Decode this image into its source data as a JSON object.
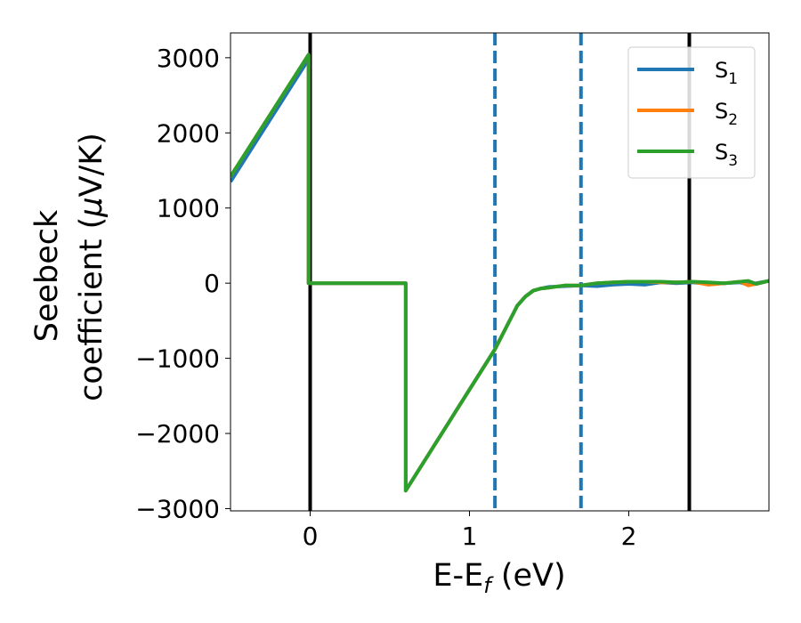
{
  "chart_data": {
    "type": "line",
    "xlabel_main": "E-E",
    "xlabel_sub": "f",
    "xlabel_unit": " (eV)",
    "ylabel_line1": "Seebeck",
    "ylabel_line2_text": "coefficient  (",
    "ylabel_line2_mu": "μ",
    "ylabel_line2_unit": "V/K)",
    "xlim": [
      -0.5,
      2.88
    ],
    "ylim": [
      -3030,
      3330
    ],
    "xticks": [
      0,
      1,
      2
    ],
    "xtick_labels": [
      "0",
      "1",
      "2"
    ],
    "yticks": [
      -3000,
      -2000,
      -1000,
      0,
      1000,
      2000,
      3000
    ],
    "ytick_labels": [
      "−3000",
      "−2000",
      "−1000",
      "0",
      "1000",
      "2000",
      "3000"
    ],
    "vlines": [
      {
        "x": 0.0,
        "style": "solid",
        "color": "#000000"
      },
      {
        "x": 1.16,
        "style": "dashed",
        "color": "#1f77b4"
      },
      {
        "x": 1.7,
        "style": "dashed",
        "color": "#1f77b4"
      },
      {
        "x": 2.38,
        "style": "solid",
        "color": "#000000"
      }
    ],
    "legend_position": "top-right",
    "series": [
      {
        "name": "S",
        "sub": "1",
        "color": "#1f77b4",
        "x": [
          -0.5,
          -0.01,
          -0.01,
          0.6,
          0.6,
          1.16,
          1.3,
          1.35,
          1.4,
          1.45,
          1.5,
          1.6,
          1.7,
          1.8,
          1.9,
          2.0,
          2.1,
          2.2,
          2.3,
          2.4,
          2.5,
          2.6,
          2.7,
          2.75,
          2.8,
          2.88
        ],
        "y": [
          1350,
          2980,
          0,
          0,
          -2760,
          -880,
          -300,
          -180,
          -100,
          -70,
          -50,
          -40,
          -30,
          -40,
          -20,
          -10,
          -20,
          10,
          0,
          10,
          -10,
          0,
          10,
          -20,
          0,
          30
        ]
      },
      {
        "name": "S",
        "sub": "2",
        "color": "#ff7f0e",
        "x": [
          -0.5,
          -0.01,
          -0.01,
          0.6,
          0.6,
          1.16,
          1.3,
          1.35,
          1.4,
          1.45,
          1.5,
          1.6,
          1.7,
          1.8,
          1.9,
          2.0,
          2.1,
          2.2,
          2.3,
          2.4,
          2.5,
          2.6,
          2.7,
          2.75,
          2.8,
          2.88
        ],
        "y": [
          1420,
          3040,
          0,
          0,
          -2760,
          -880,
          -300,
          -180,
          -100,
          -70,
          -60,
          -30,
          -30,
          0,
          10,
          20,
          20,
          10,
          10,
          20,
          -20,
          0,
          20,
          -30,
          -10,
          30
        ]
      },
      {
        "name": "S",
        "sub": "3",
        "color": "#2ca02c",
        "x": [
          -0.5,
          -0.01,
          -0.01,
          0.6,
          0.6,
          1.16,
          1.3,
          1.35,
          1.4,
          1.45,
          1.5,
          1.6,
          1.7,
          1.8,
          1.9,
          2.0,
          2.1,
          2.2,
          2.3,
          2.4,
          2.5,
          2.6,
          2.7,
          2.75,
          2.8,
          2.88
        ],
        "y": [
          1420,
          3040,
          0,
          0,
          -2760,
          -880,
          -300,
          -180,
          -100,
          -70,
          -60,
          -30,
          -30,
          0,
          10,
          20,
          20,
          20,
          10,
          20,
          10,
          0,
          20,
          30,
          -10,
          30
        ]
      }
    ]
  }
}
